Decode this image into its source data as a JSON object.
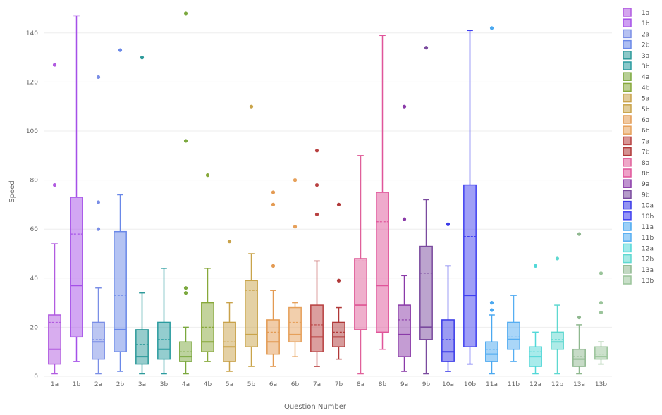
{
  "chart_data": {
    "type": "box",
    "title": "",
    "xlabel": "Question Number",
    "ylabel": "Speed",
    "ylim": [
      0,
      150
    ],
    "yticks": [
      0,
      20,
      40,
      60,
      80,
      100,
      120,
      140
    ],
    "grid": true,
    "legend_position": "right",
    "categories": [
      "1a",
      "1b",
      "2a",
      "2b",
      "3a",
      "3b",
      "4a",
      "4b",
      "5a",
      "5b",
      "6a",
      "6b",
      "7a",
      "7b",
      "8a",
      "8b",
      "9a",
      "9b",
      "10a",
      "10b",
      "11a",
      "11b",
      "12a",
      "12b",
      "13a",
      "13b"
    ],
    "series": [
      {
        "name": "1a",
        "color": "#b15be0",
        "min": 1,
        "q1": 5,
        "median": 11,
        "mean": 22,
        "q3": 25,
        "max": 54,
        "outliers": [
          78,
          127
        ]
      },
      {
        "name": "1b",
        "color": "#a550e8",
        "min": 6,
        "q1": 16,
        "median": 37,
        "mean": 58,
        "q3": 73,
        "max": 147,
        "outliers": []
      },
      {
        "name": "2a",
        "color": "#7a8ee6",
        "min": 1,
        "q1": 7,
        "median": 14,
        "mean": 15,
        "q3": 22,
        "max": 36,
        "outliers": [
          60,
          71,
          122
        ]
      },
      {
        "name": "2b",
        "color": "#6a88e8",
        "min": 2,
        "q1": 10,
        "median": 19,
        "mean": 33,
        "q3": 59,
        "max": 74,
        "outliers": [
          133
        ]
      },
      {
        "name": "3a",
        "color": "#2d9a9a",
        "min": 1,
        "q1": 5,
        "median": 8,
        "mean": 13,
        "q3": 19,
        "max": 34,
        "outliers": [
          130
        ]
      },
      {
        "name": "3b",
        "color": "#2a9b9f",
        "min": 1,
        "q1": 7,
        "median": 11,
        "mean": 15,
        "q3": 22,
        "max": 44,
        "outliers": []
      },
      {
        "name": "4a",
        "color": "#7ba83e",
        "min": 1,
        "q1": 6,
        "median": 8,
        "mean": 10,
        "q3": 14,
        "max": 20,
        "outliers": [
          34,
          36,
          96,
          148
        ]
      },
      {
        "name": "4b",
        "color": "#87a83a",
        "min": 6,
        "q1": 10,
        "median": 14,
        "mean": 20,
        "q3": 30,
        "max": 44,
        "outliers": [
          82
        ]
      },
      {
        "name": "5a",
        "color": "#c9a24a",
        "min": 2,
        "q1": 6,
        "median": 12,
        "mean": 14,
        "q3": 22,
        "max": 30,
        "outliers": [
          55
        ]
      },
      {
        "name": "5b",
        "color": "#c9a44a",
        "min": 4,
        "q1": 12,
        "median": 17,
        "mean": 35,
        "q3": 39,
        "max": 50,
        "outliers": [
          110
        ]
      },
      {
        "name": "6a",
        "color": "#e39a52",
        "min": 4,
        "q1": 9,
        "median": 14,
        "mean": 18,
        "q3": 23,
        "max": 35,
        "outliers": [
          45,
          70,
          75
        ]
      },
      {
        "name": "6b",
        "color": "#e6a05a",
        "min": 8,
        "q1": 14,
        "median": 17,
        "mean": 22,
        "q3": 28,
        "max": 30,
        "outliers": [
          61,
          80
        ]
      },
      {
        "name": "7a",
        "color": "#b84040",
        "min": 4,
        "q1": 10,
        "median": 16,
        "mean": 21,
        "q3": 29,
        "max": 47,
        "outliers": [
          66,
          78,
          92
        ]
      },
      {
        "name": "7b",
        "color": "#b03838",
        "min": 7,
        "q1": 12,
        "median": 16,
        "mean": 18,
        "q3": 22,
        "max": 28,
        "outliers": [
          39,
          70
        ]
      },
      {
        "name": "8a",
        "color": "#e0609a",
        "min": 1,
        "q1": 19,
        "median": 29,
        "mean": 47,
        "q3": 48,
        "max": 90,
        "outliers": []
      },
      {
        "name": "8b",
        "color": "#e0559a",
        "min": 11,
        "q1": 18,
        "median": 37,
        "mean": 63,
        "q3": 75,
        "max": 139,
        "outliers": []
      },
      {
        "name": "9a",
        "color": "#8a3aa8",
        "min": 2,
        "q1": 8,
        "median": 17,
        "mean": 23,
        "q3": 29,
        "max": 41,
        "outliers": [
          64,
          110
        ]
      },
      {
        "name": "9b",
        "color": "#7a4a9e",
        "min": 1,
        "q1": 15,
        "median": 20,
        "mean": 42,
        "q3": 53,
        "max": 72,
        "outliers": [
          134
        ]
      },
      {
        "name": "10a",
        "color": "#3a3ae8",
        "min": 2,
        "q1": 6,
        "median": 10,
        "mean": 15,
        "q3": 23,
        "max": 45,
        "outliers": [
          62
        ]
      },
      {
        "name": "10b",
        "color": "#4040f0",
        "min": 5,
        "q1": 12,
        "median": 33,
        "mean": 57,
        "q3": 78,
        "max": 141,
        "outliers": []
      },
      {
        "name": "11a",
        "color": "#4aa8f0",
        "min": 1,
        "q1": 6,
        "median": 9,
        "mean": 11,
        "q3": 14,
        "max": 25,
        "outliers": [
          27,
          30,
          142
        ]
      },
      {
        "name": "11b",
        "color": "#56aef2",
        "min": 6,
        "q1": 11,
        "median": 15,
        "mean": 16,
        "q3": 22,
        "max": 33,
        "outliers": []
      },
      {
        "name": "12a",
        "color": "#52d8d8",
        "min": 1,
        "q1": 4,
        "median": 8,
        "mean": 10,
        "q3": 12,
        "max": 18,
        "outliers": [
          45
        ]
      },
      {
        "name": "12b",
        "color": "#5ed8d0",
        "min": 1,
        "q1": 11,
        "median": 14,
        "mean": 15,
        "q3": 18,
        "max": 29,
        "outliers": [
          48
        ]
      },
      {
        "name": "13a",
        "color": "#8fb88f",
        "min": 1,
        "q1": 4,
        "median": 7,
        "mean": 8,
        "q3": 11,
        "max": 21,
        "outliers": [
          24,
          58
        ]
      },
      {
        "name": "13b",
        "color": "#9ac49a",
        "min": 5,
        "q1": 7,
        "median": 8,
        "mean": 9,
        "q3": 12,
        "max": 14,
        "outliers": [
          26,
          30,
          42
        ]
      }
    ]
  }
}
